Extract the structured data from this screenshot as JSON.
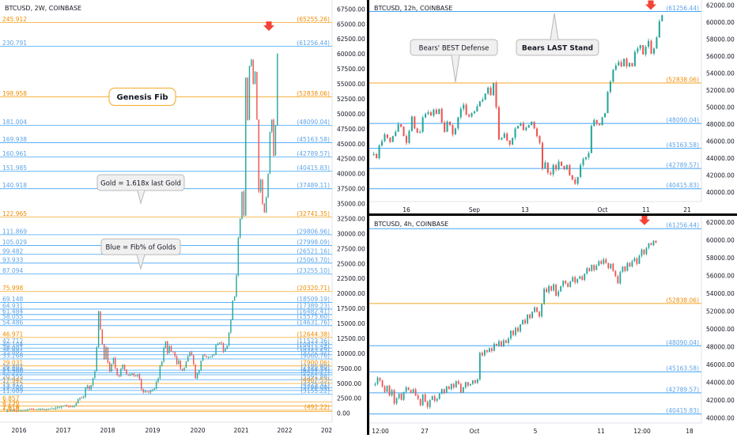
{
  "colors": {
    "up": "#26a69a",
    "down": "#ef5350",
    "blue_line": "#42a5f5",
    "blue_text": "#2e7fd8",
    "orange_line": "#f5a623",
    "orange_text": "#ef8c00",
    "arrow": "#f44336"
  },
  "chart_data": [
    {
      "type": "candlestick",
      "title": "BTCUSD, 2W, COINBASE",
      "x_ticks": [
        "2016",
        "2017",
        "2018",
        "2019",
        "2020",
        "2021",
        "2022",
        "202"
      ],
      "y_ticks": [
        "67500.00",
        "65000.00",
        "62500.00",
        "60000.00",
        "57500.00",
        "55000.00",
        "52500.00",
        "50000.00",
        "47500.00",
        "45000.00",
        "42500.00",
        "40000.00",
        "37500.00",
        "35000.00",
        "32500.00",
        "30000.00",
        "27500.00",
        "25000.00",
        "22500.00",
        "20000.00",
        "17500.00",
        "15000.00",
        "12500.00",
        "10000.00",
        "7500.00",
        "5000.00",
        "2500.00",
        "0.00"
      ],
      "ylim": [
        -1500,
        69000
      ],
      "fib_levels": [
        {
          "ratio": "245.912",
          "price": 65255.26,
          "label": "(65255.26)",
          "kind": "gold"
        },
        {
          "ratio": "230.791",
          "price": 61256.44,
          "label": "(61256.44)",
          "kind": "blue"
        },
        {
          "ratio": "198.958",
          "price": 52838.06,
          "label": "(52838.06)",
          "kind": "orange"
        },
        {
          "ratio": "181.004",
          "price": 48090.04,
          "label": "(48090.04)",
          "kind": "blue"
        },
        {
          "ratio": "169.938",
          "price": 45163.58,
          "label": "(45163.58)",
          "kind": "blue"
        },
        {
          "ratio": "160.961",
          "price": 42789.57,
          "label": "(42789.57)",
          "kind": "blue"
        },
        {
          "ratio": "151.985",
          "price": 40415.83,
          "label": "(40415.83)",
          "kind": "blue"
        },
        {
          "ratio": "140.918",
          "price": 37489.11,
          "label": "(37489.11)",
          "kind": "blue"
        },
        {
          "ratio": "122.965",
          "price": 32741.35,
          "label": "(32741.35)",
          "kind": "orange"
        },
        {
          "ratio": "111.869",
          "price": 29806.96,
          "label": "(29806.96)",
          "kind": "blue"
        },
        {
          "ratio": "105.029",
          "price": 27998.09,
          "label": "(27998.09)",
          "kind": "blue"
        },
        {
          "ratio": "99.482",
          "price": 26521.16,
          "label": "(26521.16)",
          "kind": "blue"
        },
        {
          "ratio": "93.933",
          "price": 25063.7,
          "label": "(25063.70)",
          "kind": "blue"
        },
        {
          "ratio": "87.094",
          "price": 23255.1,
          "label": "(23255.10)",
          "kind": "blue"
        },
        {
          "ratio": "75.998",
          "price": 20320.71,
          "label": "(20320.71)",
          "kind": "orange"
        },
        {
          "ratio": "69.148",
          "price": 18509.19,
          "label": "(18509.19)",
          "kind": "blue"
        },
        {
          "ratio": "64.931",
          "price": 17389.23,
          "label": "(17389.23)",
          "kind": "blue"
        },
        {
          "ratio": "61.484",
          "price": 16482.41,
          "label": "(16482.41)",
          "kind": "blue"
        },
        {
          "ratio": "58.055",
          "price": 15575.6,
          "label": "(15575.60)",
          "kind": "blue"
        },
        {
          "ratio": "54.486",
          "price": 14631.76,
          "label": "(14631.76)",
          "kind": "blue"
        },
        {
          "ratio": "46.971",
          "price": 12644.38,
          "label": "(12644.38)",
          "kind": "orange"
        },
        {
          "ratio": "42.712",
          "price": 11523.36,
          "label": "(11523.36)",
          "kind": "blue"
        },
        {
          "ratio": "40.104",
          "price": 10877.24,
          "label": "(10877.24)",
          "kind": "blue"
        },
        {
          "ratio": "38.001",
          "price": 10313.26,
          "label": "(10313.26)",
          "kind": "blue"
        },
        {
          "ratio": "35.881",
          "price": 9752.52,
          "label": "(9752.52)",
          "kind": "blue"
        },
        {
          "ratio": "33.268",
          "price": 9060.76,
          "label": "(9060.76)",
          "kind": "blue"
        },
        {
          "ratio": "29.031",
          "price": 7900.06,
          "label": "(7900.06)",
          "kind": "orange"
        },
        {
          "ratio": "26.401",
          "price": 7195.8,
          "label": "(7195.80)",
          "kind": "blue"
        },
        {
          "ratio": "24.800",
          "price": 6768.34,
          "label": "(6768.34)",
          "kind": "blue"
        },
        {
          "ratio": "23.500",
          "price": 6421.27,
          "label": "(6421.27)",
          "kind": "blue"
        },
        {
          "ratio": "20.555",
          "price": 5591.88,
          "label": "(5591.88)",
          "kind": "blue"
        },
        {
          "ratio": "17.942",
          "price": 4967.53,
          "label": "(4967.53)",
          "kind": "orange"
        },
        {
          "ratio": "15.312",
          "price": 4225.31,
          "label": "(4225.31)",
          "kind": "blue"
        },
        {
          "ratio": "13.700",
          "price": 3798.09,
          "label": "(3798.09)",
          "kind": "blue"
        },
        {
          "ratio": "11.089",
          "price": 3155.22,
          "label": "(3155.22)",
          "kind": "blue"
        },
        {
          "ratio": "6.857",
          "price": 1900.0,
          "label": "",
          "kind": "orange"
        },
        {
          "ratio": "4.236",
          "price": 1200.0,
          "label": "",
          "kind": "orange"
        },
        {
          "ratio": "2.618",
          "price": 492.22,
          "label": "(492.22)",
          "kind": "orange"
        },
        {
          "ratio": "1.618",
          "price": 300.0,
          "label": "",
          "kind": "orange"
        }
      ],
      "annotations": [
        {
          "text": "Genesis Fib",
          "price": 52838.06,
          "style": "callout-orange"
        },
        {
          "text": "Gold = 1.618x last Gold",
          "price": 38500,
          "style": "callout"
        },
        {
          "text": "Blue = Fib% of Golds",
          "price": 27800,
          "style": "callout"
        }
      ],
      "candles_ohlc_note": "biweekly closes",
      "closes": [
        430,
        420,
        440,
        450,
        410,
        400,
        420,
        430,
        460,
        520,
        580,
        650,
        700,
        680,
        640,
        600,
        610,
        620,
        650,
        660,
        610,
        640,
        700,
        750,
        780,
        830,
        900,
        970,
        1000,
        1150,
        1200,
        1300,
        1250,
        1100,
        1080,
        1150,
        1350,
        1700,
        2300,
        2600,
        2500,
        2700,
        4200,
        4600,
        4000,
        4700,
        5900,
        7000,
        11000,
        17000,
        14000,
        11500,
        9000,
        11000,
        8500,
        6900,
        8200,
        9200,
        7500,
        6400,
        6200,
        7400,
        8100,
        7300,
        6500,
        6300,
        6400,
        6600,
        6300,
        6200,
        6500,
        5600,
        4000,
        3500,
        3700,
        3600,
        3500,
        3800,
        3900,
        4100,
        5200,
        5800,
        7900,
        8600,
        10900,
        12000,
        10000,
        11200,
        10300,
        10200,
        9500,
        8200,
        8800,
        7400,
        7200,
        7600,
        8600,
        9500,
        10200,
        9700,
        8100,
        5800,
        6700,
        7200,
        8800,
        9700,
        9500,
        9300,
        9400,
        9500,
        9600,
        9800,
        11400,
        11600,
        11800,
        11700,
        10300,
        10700,
        11300,
        13500,
        15600,
        18800,
        19500,
        23000,
        29300,
        32500,
        37000,
        33000,
        56000,
        49000,
        58000,
        59000,
        55000,
        57000,
        49000,
        37000,
        39000,
        35000,
        33500,
        36000,
        40000,
        47000,
        49000,
        43000,
        48000,
        60000
      ],
      "arrow_price": 64500
    },
    {
      "type": "candlestick",
      "title": "BTCUSD, 12h, COINBASE",
      "x_ticks": [
        "16",
        "Sep",
        "13",
        "Oct",
        "11",
        "21"
      ],
      "y_ticks": [
        "62000.00",
        "60000.00",
        "58000.00",
        "56000.00",
        "54000.00",
        "52000.00",
        "50000.00",
        "48000.00",
        "46000.00",
        "44000.00",
        "42000.00",
        "40000.00"
      ],
      "ylim": [
        38900,
        62600
      ],
      "fib_levels": [
        {
          "price": 61256.44,
          "label": "(61256.44)",
          "kind": "blue"
        },
        {
          "price": 52838.06,
          "label": "(52838.06)",
          "kind": "orange"
        },
        {
          "price": 48090.04,
          "label": "(48090.04)",
          "kind": "blue"
        },
        {
          "price": 45163.58,
          "label": "(45163.58)",
          "kind": "blue"
        },
        {
          "price": 42789.57,
          "label": "(42789.57)",
          "kind": "blue"
        },
        {
          "price": 40415.83,
          "label": "(40415.83)",
          "kind": "blue"
        }
      ],
      "annotations": [
        {
          "text": "Bears' BEST Defense",
          "style": "callout"
        },
        {
          "text": "Bears LAST Stand",
          "style": "callout-bold"
        }
      ],
      "closes": [
        44500,
        44000,
        45500,
        46000,
        46800,
        46400,
        45900,
        46600,
        47100,
        48000,
        47700,
        46600,
        45800,
        47200,
        48900,
        47500,
        47000,
        47100,
        48800,
        49200,
        49400,
        49000,
        49700,
        49200,
        49800,
        48200,
        47100,
        48300,
        47900,
        46800,
        47500,
        48800,
        49800,
        50300,
        49100,
        48900,
        49300,
        49500,
        50100,
        50700,
        50900,
        51600,
        52300,
        51400,
        52800,
        50000,
        46200,
        46400,
        46900,
        46100,
        45600,
        46400,
        47500,
        47800,
        48100,
        47300,
        47600,
        47900,
        48300,
        47500,
        46600,
        45800,
        42800,
        43500,
        42300,
        42100,
        43200,
        42700,
        43600,
        43100,
        42700,
        43200,
        42000,
        41500,
        41000,
        41800,
        43200,
        43900,
        44100,
        44600,
        47800,
        48500,
        48100,
        47900,
        48800,
        49300,
        51800,
        53000,
        54400,
        54900,
        55300,
        54800,
        55700,
        54800,
        55200,
        54800,
        56500,
        56900,
        57300,
        56200,
        57100,
        57800,
        56300,
        56900,
        58200,
        60100,
        60800
      ],
      "arrow_price": 61900
    },
    {
      "type": "candlestick",
      "title": "BTCUSD, 4h, COINBASE",
      "x_ticks": [
        "12:00",
        "27",
        "Oct",
        "5",
        "11",
        "12:00",
        "18"
      ],
      "y_ticks": [
        "62000.00",
        "60000.00",
        "58000.00",
        "56000.00",
        "54000.00",
        "52000.00",
        "50000.00",
        "48000.00",
        "46000.00",
        "44000.00",
        "42000.00",
        "40000.00"
      ],
      "ylim": [
        39400,
        62700
      ],
      "fib_levels": [
        {
          "price": 61256.44,
          "label": "(61256.44)",
          "kind": "blue"
        },
        {
          "price": 52838.06,
          "label": "(52838.06)",
          "kind": "orange"
        },
        {
          "price": 48090.04,
          "label": "(48090.04)",
          "kind": "blue"
        },
        {
          "price": 45163.58,
          "label": "(45163.58)",
          "kind": "blue"
        },
        {
          "price": 42789.57,
          "label": "(42789.57)",
          "kind": "blue"
        },
        {
          "price": 40415.83,
          "label": "(40415.83)",
          "kind": "blue"
        }
      ],
      "closes": [
        43800,
        44500,
        44200,
        43500,
        42900,
        43600,
        42500,
        43100,
        41600,
        42200,
        42700,
        42000,
        42900,
        43400,
        43100,
        42800,
        43200,
        42500,
        42100,
        41400,
        42600,
        41800,
        41200,
        42000,
        42400,
        41900,
        42100,
        42700,
        43200,
        42800,
        43500,
        43200,
        43800,
        43400,
        44100,
        43800,
        42800,
        43400,
        44000,
        43600,
        43800,
        44200,
        43900,
        44300,
        47300,
        47000,
        47600,
        47400,
        47800,
        47500,
        48300,
        48100,
        48600,
        48000,
        48700,
        48400,
        48900,
        49800,
        49300,
        50100,
        49700,
        50500,
        51000,
        50600,
        51600,
        51200,
        51900,
        52400,
        51900,
        51400,
        52800,
        54500,
        54100,
        54800,
        54300,
        55000,
        53700,
        54200,
        54800,
        55400,
        55100,
        54700,
        55300,
        55800,
        55200,
        55600,
        55900,
        55500,
        56200,
        56800,
        56500,
        57200,
        56600,
        57100,
        57600,
        57300,
        57800,
        57400,
        56800,
        57300,
        56500,
        55900,
        55100,
        56400,
        57000,
        56500,
        57400,
        57000,
        57600,
        57900,
        57300,
        58200,
        58900,
        58400,
        59100,
        59600,
        59400,
        59900,
        59700
      ],
      "arrow_price": 62100
    }
  ]
}
